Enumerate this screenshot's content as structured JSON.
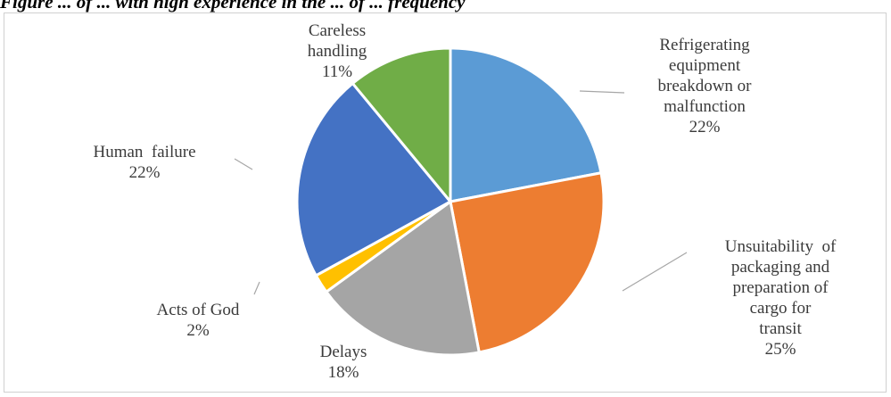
{
  "figure": {
    "caption": "Figure ... of ... with high experience in the ... of ... frequency"
  },
  "chart_data": {
    "type": "pie",
    "title": "",
    "start_angle_deg": 0,
    "direction": "clockwise",
    "legend": "none",
    "slices": [
      {
        "name": "Refrigerating equipment breakdown or malfunction",
        "value": 22,
        "percent_label": "22%",
        "color": "#5b9bd5",
        "label_lines": [
          "Refrigerating",
          "equipment",
          "breakdown or",
          "malfunction",
          "22%"
        ]
      },
      {
        "name": "Unsuitability of packaging and preparation of cargo for transit",
        "value": 25,
        "percent_label": "25%",
        "color": "#ed7d31",
        "label_lines": [
          "Unsuitability  of",
          "packaging and",
          "preparation of",
          "cargo for",
          "transit",
          "25%"
        ]
      },
      {
        "name": "Delays",
        "value": 18,
        "percent_label": "18%",
        "color": "#a5a5a5",
        "label_lines": [
          "Delays",
          "18%"
        ]
      },
      {
        "name": "Acts of God",
        "value": 2,
        "percent_label": "2%",
        "color": "#ffc000",
        "label_lines": [
          "Acts of God",
          "2%"
        ]
      },
      {
        "name": "Human failure",
        "value": 22,
        "percent_label": "22%",
        "color": "#4472c4",
        "label_lines": [
          "Human  failure",
          "22%"
        ]
      },
      {
        "name": "Careless handling",
        "value": 11,
        "percent_label": "11%",
        "color": "#70ad47",
        "label_lines": [
          "Careless",
          "handling",
          "11%"
        ]
      }
    ]
  }
}
